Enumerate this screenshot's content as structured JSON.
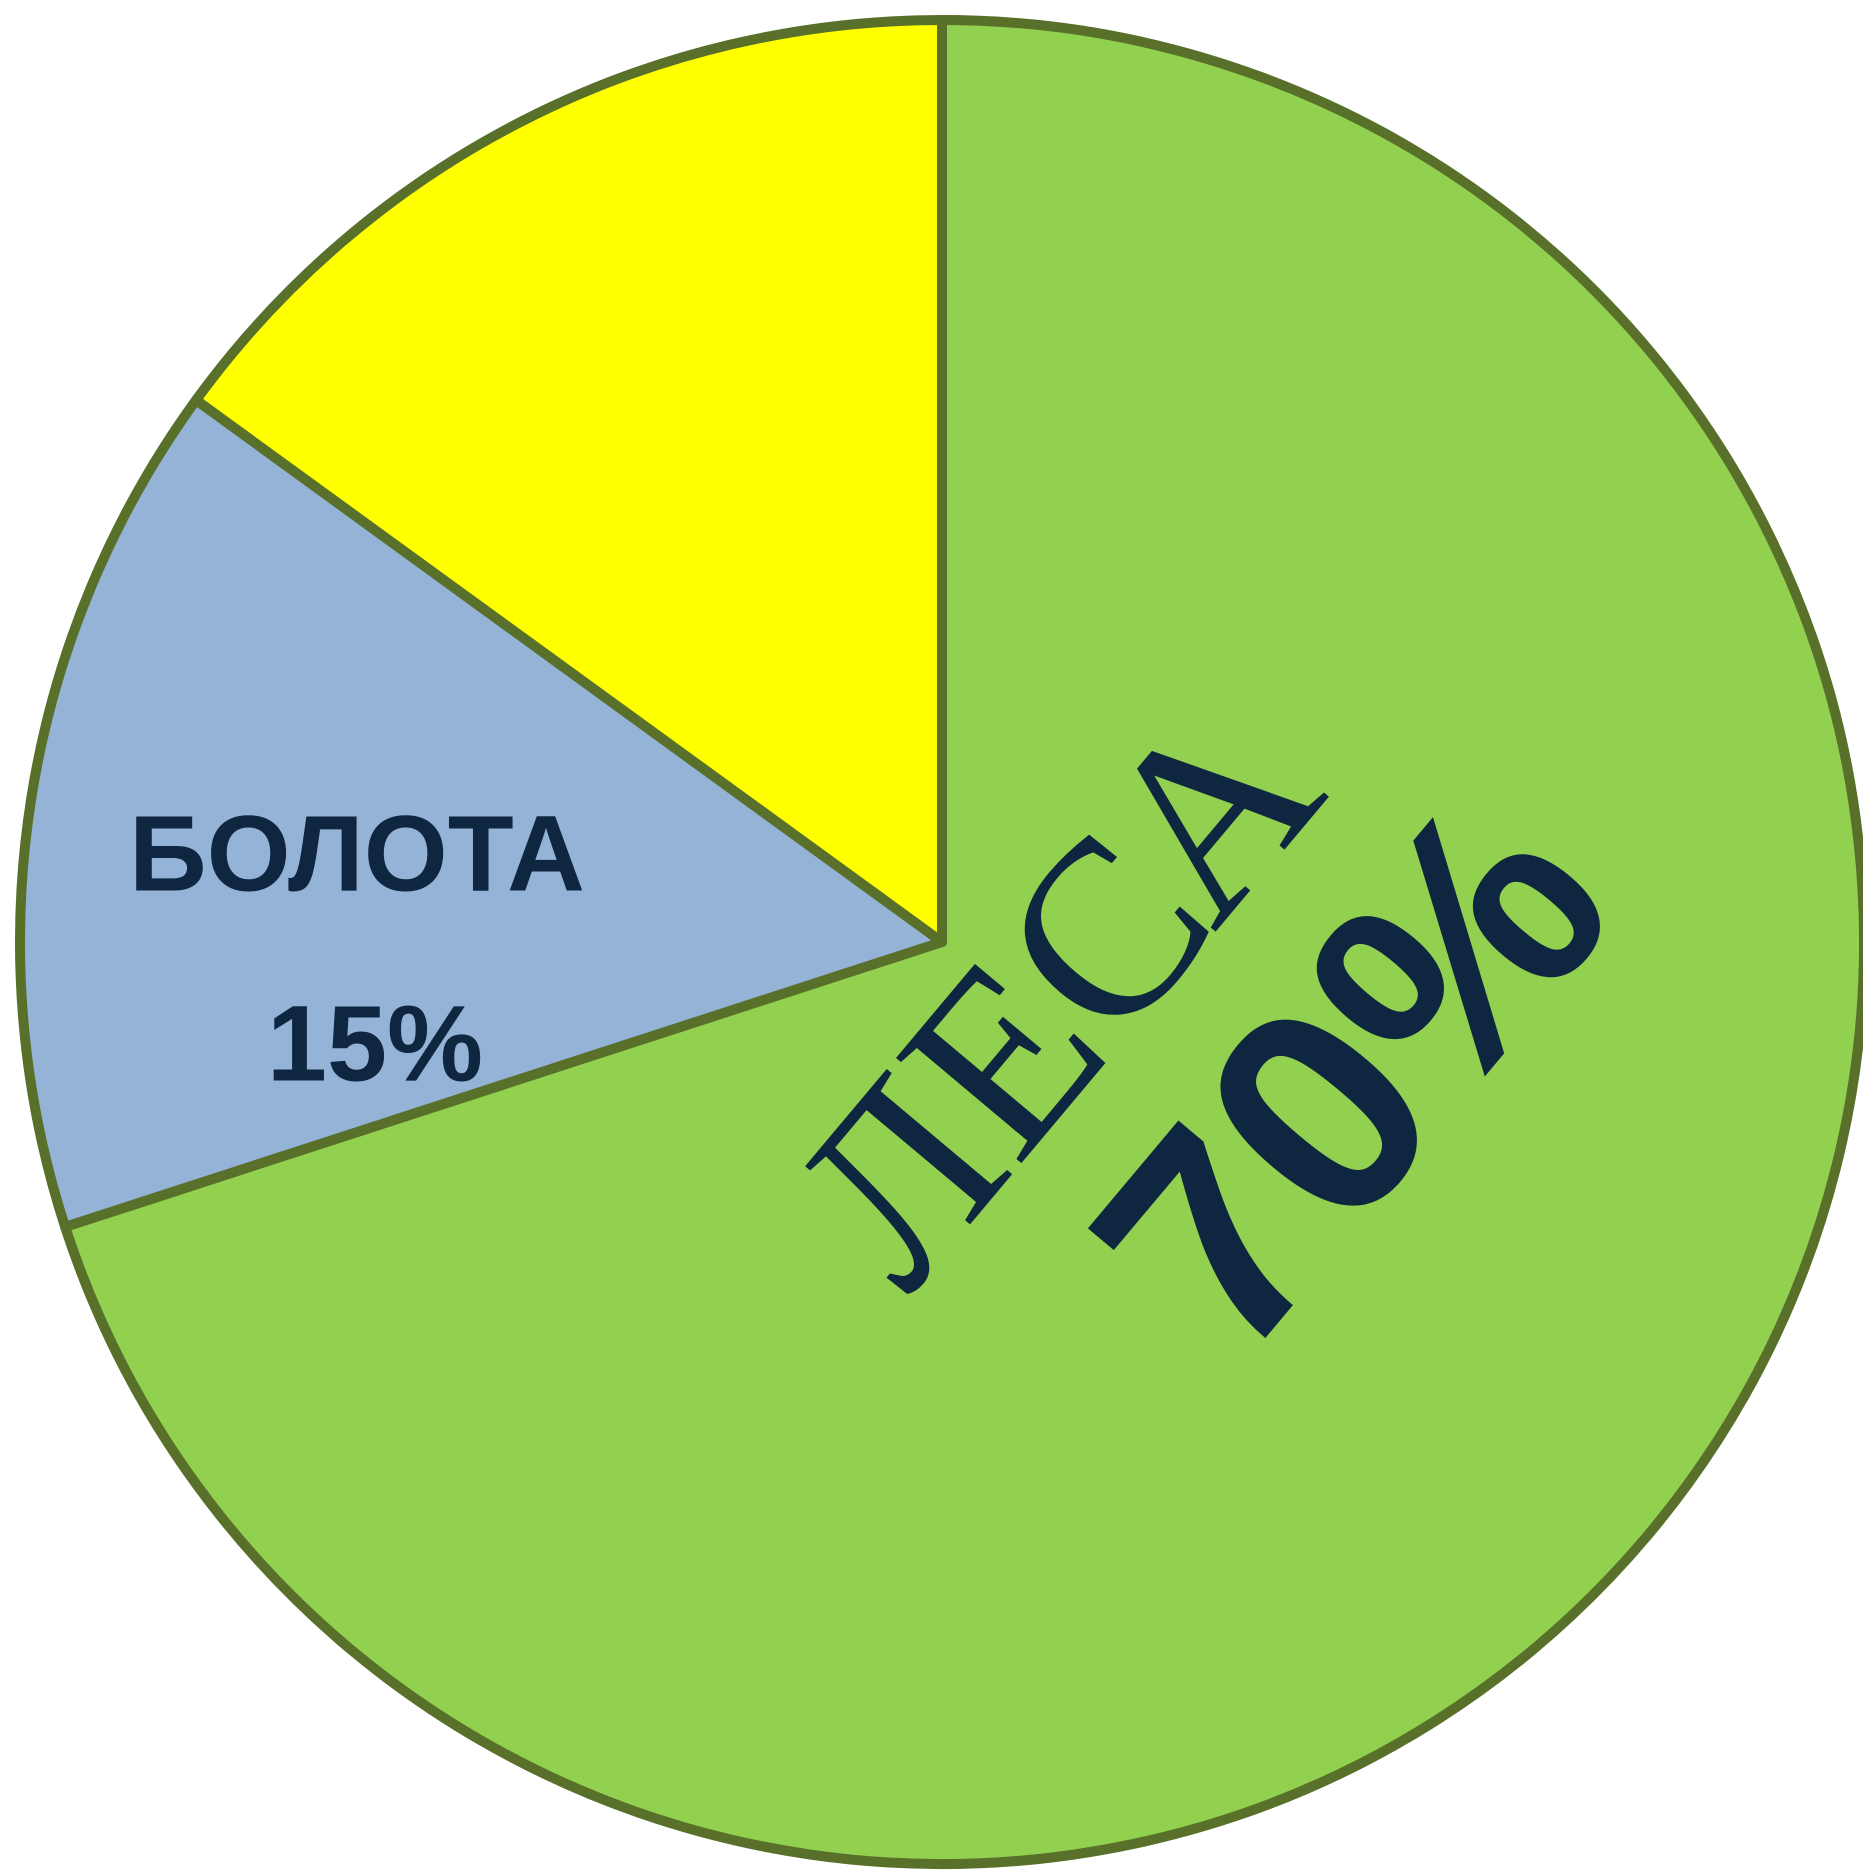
{
  "chart_data": {
    "type": "pie",
    "categories": [
      "ЛЕСА",
      "БОЛОТА",
      null
    ],
    "values": [
      70,
      15,
      15
    ],
    "value_labels": [
      "70%",
      "15%",
      null
    ],
    "colors": [
      "#92d050",
      "#95b3d7",
      "#ffff00"
    ],
    "start_angle": 0,
    "direction": "clockwise"
  }
}
